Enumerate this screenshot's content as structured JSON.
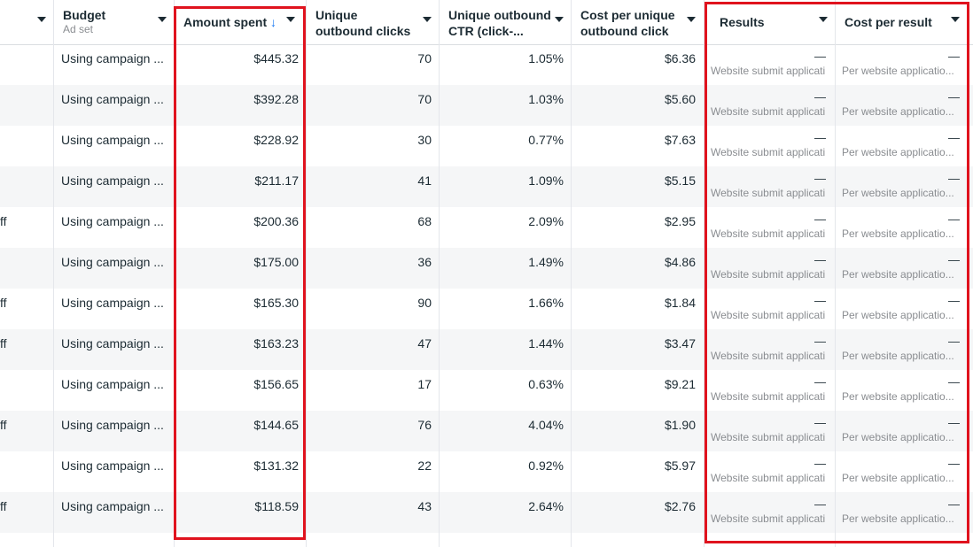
{
  "columns": {
    "budget": {
      "label": "Budget",
      "sub": "Ad set"
    },
    "amount_spent": {
      "label": "Amount spent",
      "sort_icon": "↓"
    },
    "unique_outbound_clicks": {
      "label_line1": "Unique",
      "label_line2": "outbound clicks"
    },
    "unique_outbound_ctr": {
      "label_line1": "Unique outbound",
      "label_line2": "CTR (click-..."
    },
    "cost_per_unique_outbound_click": {
      "label_line1": "Cost per unique",
      "label_line2": "outbound click"
    },
    "results": {
      "label": "Results"
    },
    "cost_per_result": {
      "label": "Cost per result"
    }
  },
  "rows": [
    {
      "left": "",
      "budget": "Using campaign ...",
      "spent": "$445.32",
      "clicks": "70",
      "ctr": "1.05%",
      "cpc": "$6.36",
      "results": "—",
      "results_sub": "Website submit applicati",
      "cpr": "—",
      "cpr_sub": "Per website applicatio..."
    },
    {
      "left": "",
      "budget": "Using campaign ...",
      "spent": "$392.28",
      "clicks": "70",
      "ctr": "1.03%",
      "cpc": "$5.60",
      "results": "—",
      "results_sub": "Website submit applicati",
      "cpr": "—",
      "cpr_sub": "Per website applicatio..."
    },
    {
      "left": "",
      "budget": "Using campaign ...",
      "spent": "$228.92",
      "clicks": "30",
      "ctr": "0.77%",
      "cpc": "$7.63",
      "results": "—",
      "results_sub": "Website submit applicati",
      "cpr": "—",
      "cpr_sub": "Per website applicatio..."
    },
    {
      "left": "",
      "budget": "Using campaign ...",
      "spent": "$211.17",
      "clicks": "41",
      "ctr": "1.09%",
      "cpc": "$5.15",
      "results": "—",
      "results_sub": "Website submit applicati",
      "cpr": "—",
      "cpr_sub": "Per website applicatio..."
    },
    {
      "left": "ff",
      "budget": "Using campaign ...",
      "spent": "$200.36",
      "clicks": "68",
      "ctr": "2.09%",
      "cpc": "$2.95",
      "results": "—",
      "results_sub": "Website submit applicati",
      "cpr": "—",
      "cpr_sub": "Per website applicatio..."
    },
    {
      "left": "",
      "budget": "Using campaign ...",
      "spent": "$175.00",
      "clicks": "36",
      "ctr": "1.49%",
      "cpc": "$4.86",
      "results": "—",
      "results_sub": "Website submit applicati",
      "cpr": "—",
      "cpr_sub": "Per website applicatio..."
    },
    {
      "left": "ff",
      "budget": "Using campaign ...",
      "spent": "$165.30",
      "clicks": "90",
      "ctr": "1.66%",
      "cpc": "$1.84",
      "results": "—",
      "results_sub": "Website submit applicati",
      "cpr": "—",
      "cpr_sub": "Per website applicatio..."
    },
    {
      "left": "ff",
      "budget": "Using campaign ...",
      "spent": "$163.23",
      "clicks": "47",
      "ctr": "1.44%",
      "cpc": "$3.47",
      "results": "—",
      "results_sub": "Website submit applicati",
      "cpr": "—",
      "cpr_sub": "Per website applicatio..."
    },
    {
      "left": "",
      "budget": "Using campaign ...",
      "spent": "$156.65",
      "clicks": "17",
      "ctr": "0.63%",
      "cpc": "$9.21",
      "results": "—",
      "results_sub": "Website submit applicati",
      "cpr": "—",
      "cpr_sub": "Per website applicatio..."
    },
    {
      "left": "ff",
      "budget": "Using campaign ...",
      "spent": "$144.65",
      "clicks": "76",
      "ctr": "4.04%",
      "cpc": "$1.90",
      "results": "—",
      "results_sub": "Website submit applicati",
      "cpr": "—",
      "cpr_sub": "Per website applicatio..."
    },
    {
      "left": "",
      "budget": "Using campaign ...",
      "spent": "$131.32",
      "clicks": "22",
      "ctr": "0.92%",
      "cpc": "$5.97",
      "results": "—",
      "results_sub": "Website submit applicati",
      "cpr": "—",
      "cpr_sub": "Per website applicatio..."
    },
    {
      "left": "ff",
      "budget": "Using campaign ...",
      "spent": "$118.59",
      "clicks": "43",
      "ctr": "2.64%",
      "cpc": "$2.76",
      "results": "—",
      "results_sub": "Website submit applicati",
      "cpr": "—",
      "cpr_sub": "Per website applicatio..."
    }
  ],
  "colors": {
    "highlight": "#e0131e",
    "row_alt": "#f5f6f7",
    "sort_blue": "#1877f2"
  }
}
